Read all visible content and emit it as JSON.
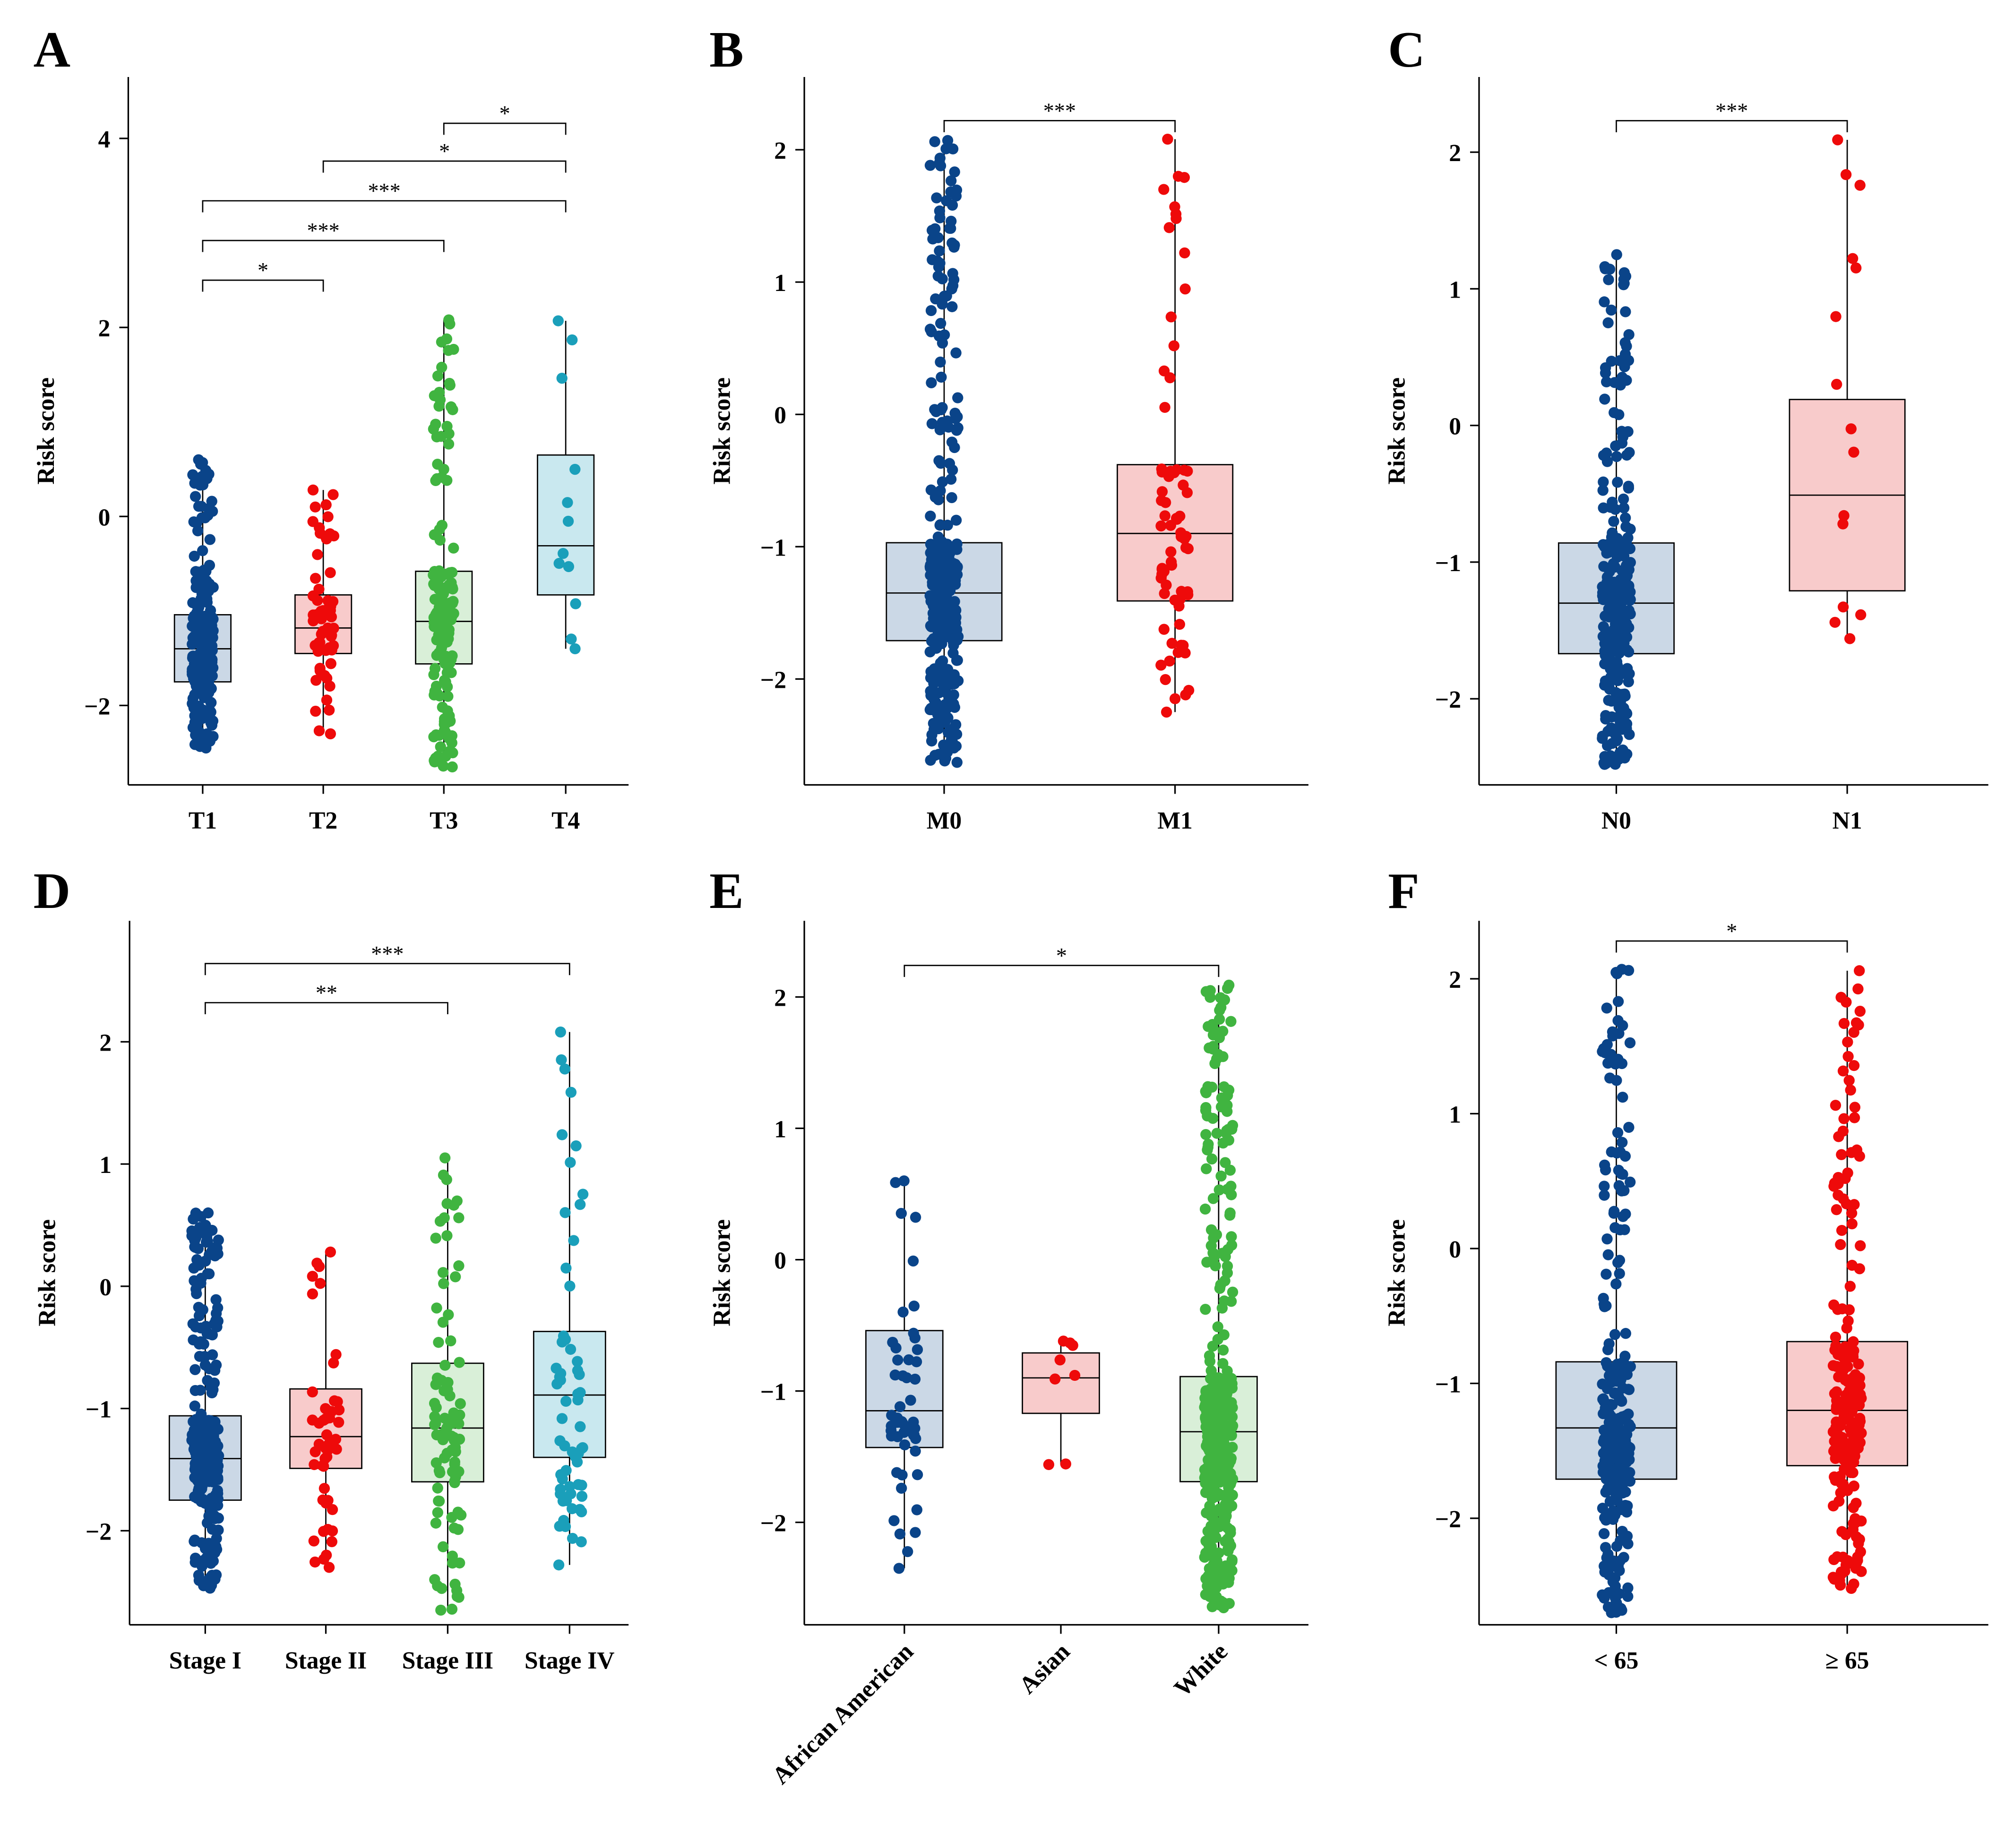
{
  "colors": {
    "navy": "#0a4489",
    "red": "#ee0a0a",
    "green": "#40b440",
    "teal": "#1a9fba",
    "fill_navy": "#cbd8e6",
    "fill_red": "#f8cbcb",
    "fill_green": "#d9efd8",
    "fill_teal": "#c9e8ef"
  },
  "chart_data": [
    {
      "panel": "A",
      "type": "box",
      "ylabel": "Risk score",
      "ylim": [
        -2.84,
        4.65
      ],
      "yticks": [
        "4",
        "2",
        "0",
        "−2"
      ],
      "ytick_values": [
        4,
        2,
        0,
        -2
      ],
      "categories": [
        "T1",
        "T2",
        "T3",
        "T4"
      ],
      "groups": [
        {
          "name": "T1",
          "color": "navy",
          "min": -2.45,
          "q1": -1.75,
          "median": -1.4,
          "q3": -1.04,
          "max": 0.6,
          "n": 250
        },
        {
          "name": "T2",
          "color": "red",
          "min": -2.3,
          "q1": -1.45,
          "median": -1.18,
          "q3": -0.83,
          "max": 0.28,
          "n": 60
        },
        {
          "name": "T3",
          "color": "green",
          "min": -2.65,
          "q1": -1.56,
          "median": -1.11,
          "q3": -0.58,
          "max": 2.08,
          "n": 150
        },
        {
          "name": "T4",
          "color": "teal",
          "min": -1.4,
          "q1": -0.83,
          "median": -0.31,
          "q3": 0.65,
          "max": 2.07,
          "n": 12
        }
      ],
      "comparisons": [
        {
          "a": 0,
          "b": 1,
          "y": 2.5,
          "label": "*"
        },
        {
          "a": 0,
          "b": 2,
          "y": 2.92,
          "label": "***"
        },
        {
          "a": 0,
          "b": 3,
          "y": 3.34,
          "label": "***"
        },
        {
          "a": 1,
          "b": 3,
          "y": 3.76,
          "label": "*"
        },
        {
          "a": 2,
          "b": 3,
          "y": 4.16,
          "label": "*"
        }
      ]
    },
    {
      "panel": "B",
      "type": "box",
      "ylabel": "Risk score",
      "ylim": [
        -2.8,
        2.55
      ],
      "yticks": [
        "2",
        "1",
        "0",
        "−1",
        "−2"
      ],
      "ytick_values": [
        2,
        1,
        0,
        -1,
        -2
      ],
      "categories": [
        "M0",
        "M1"
      ],
      "groups": [
        {
          "name": "M0",
          "color": "navy",
          "min": -2.63,
          "q1": -1.71,
          "median": -1.35,
          "q3": -0.97,
          "max": 2.07,
          "n": 350
        },
        {
          "name": "M1",
          "color": "red",
          "min": -2.25,
          "q1": -1.41,
          "median": -0.9,
          "q3": -0.38,
          "max": 2.08,
          "n": 70
        }
      ],
      "comparisons": [
        {
          "a": 0,
          "b": 1,
          "y": 2.22,
          "label": "***"
        }
      ]
    },
    {
      "panel": "C",
      "type": "box",
      "ylabel": "Risk score",
      "ylim": [
        -2.63,
        2.55
      ],
      "yticks": [
        "2",
        "1",
        "0",
        "−1",
        "−2"
      ],
      "ytick_values": [
        2,
        1,
        0,
        -1,
        -2
      ],
      "categories": [
        "N0",
        "N1"
      ],
      "groups": [
        {
          "name": "N0",
          "color": "navy",
          "min": -2.48,
          "q1": -1.67,
          "median": -1.3,
          "q3": -0.86,
          "max": 1.25,
          "n": 250
        },
        {
          "name": "N1",
          "color": "red",
          "min": -1.56,
          "q1": -1.21,
          "median": -0.51,
          "q3": 0.19,
          "max": 2.09,
          "n": 15
        }
      ],
      "comparisons": [
        {
          "a": 0,
          "b": 1,
          "y": 2.23,
          "label": "***"
        }
      ]
    },
    {
      "panel": "D",
      "type": "box",
      "ylabel": "Risk score",
      "ylim": [
        -2.77,
        2.99
      ],
      "yticks": [
        "2",
        "1",
        "0",
        "−1",
        "−2"
      ],
      "ytick_values": [
        2,
        1,
        0,
        -1,
        -2
      ],
      "categories": [
        "Stage I",
        "Stage II",
        "Stage III",
        "Stage IV"
      ],
      "groups": [
        {
          "name": "Stage I",
          "color": "navy",
          "min": -2.47,
          "q1": -1.75,
          "median": -1.41,
          "q3": -1.06,
          "max": 0.6,
          "n": 250
        },
        {
          "name": "Stage II",
          "color": "red",
          "min": -2.3,
          "q1": -1.49,
          "median": -1.23,
          "q3": -0.84,
          "max": 0.28,
          "n": 50
        },
        {
          "name": "Stage III",
          "color": "green",
          "min": -2.65,
          "q1": -1.6,
          "median": -1.16,
          "q3": -0.63,
          "max": 1.05,
          "n": 90
        },
        {
          "name": "Stage IV",
          "color": "teal",
          "min": -2.28,
          "q1": -1.4,
          "median": -0.89,
          "q3": -0.37,
          "max": 2.08,
          "n": 60
        }
      ],
      "comparisons": [
        {
          "a": 0,
          "b": 2,
          "y": 2.32,
          "label": "**"
        },
        {
          "a": 0,
          "b": 3,
          "y": 2.64,
          "label": "***"
        }
      ]
    },
    {
      "panel": "E",
      "type": "box",
      "ylabel": "Risk score",
      "ylim": [
        -2.78,
        2.58
      ],
      "yticks": [
        "2",
        "1",
        "0",
        "−1",
        "−2"
      ],
      "ytick_values": [
        2,
        1,
        0,
        -1,
        -2
      ],
      "categories": [
        "African American",
        "Asian",
        "White"
      ],
      "groups": [
        {
          "name": "African American",
          "color": "navy",
          "min": -2.35,
          "q1": -1.43,
          "median": -1.15,
          "q3": -0.54,
          "max": 0.6,
          "n": 50
        },
        {
          "name": "Asian",
          "color": "red",
          "min": -1.56,
          "q1": -1.17,
          "median": -0.9,
          "q3": -0.71,
          "max": -0.62,
          "n": 8
        },
        {
          "name": "White",
          "color": "green",
          "min": -2.65,
          "q1": -1.69,
          "median": -1.31,
          "q3": -0.89,
          "max": 2.09,
          "n": 400
        }
      ],
      "comparisons": [
        {
          "a": 0,
          "b": 2,
          "y": 2.24,
          "label": "*"
        }
      ]
    },
    {
      "panel": "F",
      "type": "box",
      "ylabel": "Risk score",
      "ylim": [
        -2.79,
        2.43
      ],
      "yticks": [
        "2",
        "1",
        "0",
        "−1",
        "−2"
      ],
      "ytick_values": [
        2,
        1,
        0,
        -1,
        -2
      ],
      "categories": [
        "< 65",
        "≥ 65"
      ],
      "groups": [
        {
          "name": "< 65",
          "color": "navy",
          "min": -2.7,
          "q1": -1.71,
          "median": -1.33,
          "q3": -0.84,
          "max": 2.07,
          "n": 250
        },
        {
          "name": "≥ 65",
          "color": "red",
          "min": -2.52,
          "q1": -1.61,
          "median": -1.2,
          "q3": -0.69,
          "max": 2.06,
          "n": 200
        }
      ],
      "comparisons": [
        {
          "a": 0,
          "b": 1,
          "y": 2.28,
          "label": "*"
        }
      ]
    }
  ]
}
